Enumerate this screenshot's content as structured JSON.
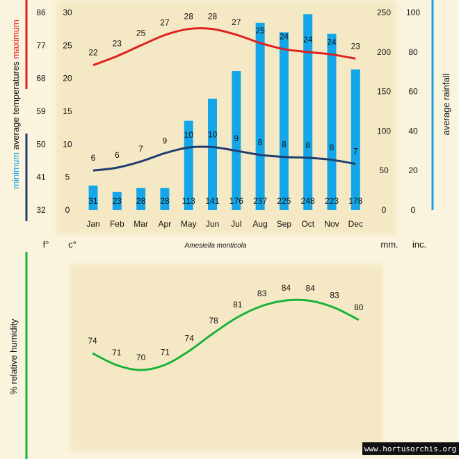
{
  "colors": {
    "background": "#faf3dd",
    "panel": "#f5e9c5",
    "maximum": "#e02020",
    "minimum": "#1f3e6e",
    "rainfall": "#14a6e8",
    "humidity": "#19b23a",
    "text": "#111111"
  },
  "chart_data": [
    {
      "type": "bar",
      "title": "Amesiella monticola",
      "categories": [
        "Jan",
        "Feb",
        "Mar",
        "Apr",
        "May",
        "Jun",
        "Jul",
        "Aug",
        "Sep",
        "Oct",
        "Nov",
        "Dec"
      ],
      "series": [
        {
          "name": "maximum",
          "axis": "temperature_c",
          "type": "line",
          "values": [
            22,
            23,
            25,
            27,
            28,
            28,
            27,
            25,
            24,
            24,
            24,
            23
          ]
        },
        {
          "name": "minimum",
          "axis": "temperature_c",
          "type": "line",
          "values": [
            6,
            6,
            7,
            9,
            10,
            10,
            9,
            8,
            8,
            8,
            8,
            7
          ]
        },
        {
          "name": "average rainfall",
          "axis": "rainfall_mm",
          "type": "bar",
          "values": [
            31,
            23,
            28,
            28,
            113,
            141,
            176,
            237,
            225,
            248,
            223,
            178
          ]
        }
      ],
      "axes": {
        "celsius": {
          "label": "c°",
          "ticks": [
            0,
            5,
            10,
            15,
            20,
            25,
            30
          ],
          "range": [
            0,
            30
          ]
        },
        "fahrenheit": {
          "label": "f°",
          "ticks": [
            32,
            41,
            50,
            59,
            68,
            77,
            86
          ]
        },
        "mm": {
          "label": "mm.",
          "ticks": [
            0,
            50,
            100,
            150,
            200,
            250
          ],
          "range": [
            0,
            250
          ]
        },
        "inches": {
          "label": "inc.",
          "ticks": [
            0,
            20,
            40,
            60,
            80,
            100
          ]
        }
      },
      "left_label": {
        "minimum": "minimum",
        "average": "average",
        "temperatures": "temperatures",
        "maximum": "maximum"
      },
      "right_label": "average rainfall"
    },
    {
      "type": "line",
      "categories": [
        "Jan",
        "Feb",
        "Mar",
        "Apr",
        "May",
        "Jun",
        "Jul",
        "Aug",
        "Sep",
        "Oct",
        "Nov",
        "Dec"
      ],
      "series": [
        {
          "name": "% relative humidity",
          "values": [
            74,
            71,
            70,
            71,
            74,
            78,
            81,
            83,
            84,
            84,
            83,
            80
          ]
        }
      ],
      "ylabel": "%  relative humidity",
      "ylim": [
        60,
        90
      ]
    }
  ],
  "watermark": "www.hortusorchis.org"
}
